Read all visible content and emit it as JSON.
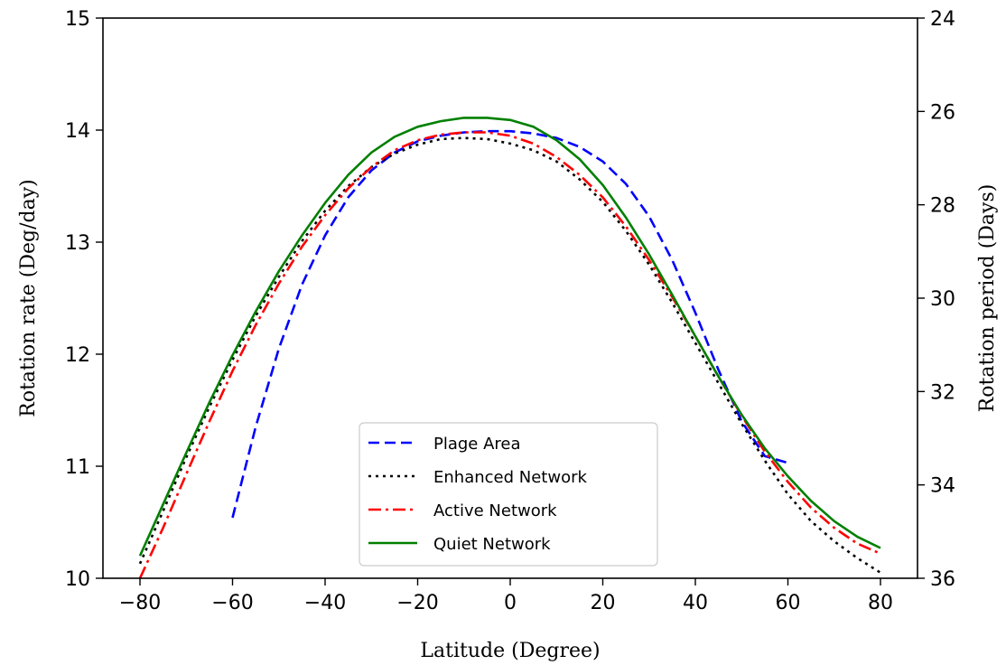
{
  "chart_data": {
    "type": "line",
    "title": "",
    "xlabel": "Latitude (Degree)",
    "ylabel": "Rotation rate (Deg/day)",
    "y2label": "Rotation period (Days)",
    "xlim": [
      -88,
      88
    ],
    "ylim": [
      10,
      15
    ],
    "y2lim": [
      36,
      24
    ],
    "xticks": [
      -80,
      -60,
      -40,
      -20,
      0,
      20,
      40,
      60,
      80
    ],
    "xtick_labels": [
      "−80",
      "−60",
      "−40",
      "−20",
      "0",
      "20",
      "40",
      "60",
      "80"
    ],
    "yticks": [
      10,
      11,
      12,
      13,
      14,
      15
    ],
    "ytick_labels": [
      "10",
      "11",
      "12",
      "13",
      "14",
      "15"
    ],
    "y2ticks": [
      24,
      26,
      28,
      30,
      32,
      34,
      36
    ],
    "y2tick_labels": [
      "24",
      "26",
      "28",
      "30",
      "32",
      "34",
      "36"
    ],
    "grid": false,
    "legend_position": "bottom-center",
    "series": [
      {
        "name": "Plage Area",
        "color": "#0000ff",
        "style": "dashed",
        "x": [
          -60,
          -55,
          -50,
          -45,
          -40,
          -35,
          -30,
          -25,
          -20,
          -15,
          -10,
          -5,
          0,
          5,
          10,
          15,
          20,
          25,
          30,
          35,
          40,
          45,
          50,
          55,
          60
        ],
        "y": [
          10.54,
          11.35,
          12.05,
          12.62,
          13.06,
          13.4,
          13.64,
          13.8,
          13.9,
          13.95,
          13.98,
          13.99,
          13.99,
          13.97,
          13.93,
          13.85,
          13.72,
          13.52,
          13.23,
          12.84,
          12.37,
          11.86,
          11.4,
          11.09,
          11.03
        ]
      },
      {
        "name": "Enhanced Network",
        "color": "#000000",
        "style": "dotted",
        "x": [
          -80,
          -75,
          -70,
          -65,
          -60,
          -55,
          -50,
          -45,
          -40,
          -35,
          -30,
          -25,
          -20,
          -15,
          -10,
          -5,
          0,
          5,
          10,
          15,
          20,
          25,
          30,
          35,
          40,
          45,
          50,
          55,
          60,
          65,
          70,
          75,
          80
        ],
        "y": [
          10.13,
          10.6,
          11.08,
          11.53,
          11.95,
          12.34,
          12.69,
          13.01,
          13.28,
          13.5,
          13.67,
          13.79,
          13.87,
          13.92,
          13.93,
          13.92,
          13.88,
          13.82,
          13.72,
          13.56,
          13.36,
          13.1,
          12.8,
          12.46,
          12.1,
          11.74,
          11.38,
          11.05,
          10.75,
          10.51,
          10.33,
          10.18,
          10.05
        ]
      },
      {
        "name": "Active Network",
        "color": "#ff0000",
        "style": "dashdot",
        "x": [
          -80,
          -75,
          -70,
          -65,
          -60,
          -55,
          -50,
          -45,
          -40,
          -35,
          -30,
          -25,
          -20,
          -15,
          -10,
          -5,
          0,
          5,
          10,
          15,
          20,
          25,
          30,
          35,
          40,
          45,
          50,
          55,
          60,
          65,
          70,
          75,
          80
        ],
        "y": [
          10.0,
          10.45,
          10.93,
          11.4,
          11.85,
          12.26,
          12.63,
          12.96,
          13.24,
          13.48,
          13.67,
          13.82,
          13.91,
          13.96,
          13.98,
          13.98,
          13.95,
          13.88,
          13.76,
          13.6,
          13.4,
          13.14,
          12.84,
          12.51,
          12.16,
          11.8,
          11.45,
          11.13,
          10.86,
          10.63,
          10.45,
          10.31,
          10.22
        ]
      },
      {
        "name": "Quiet Network",
        "color": "#008000",
        "style": "solid",
        "x": [
          -80,
          -75,
          -70,
          -65,
          -60,
          -55,
          -50,
          -45,
          -40,
          -35,
          -30,
          -25,
          -20,
          -15,
          -10,
          -5,
          0,
          5,
          10,
          15,
          20,
          25,
          30,
          35,
          40,
          45,
          50,
          55,
          60,
          65,
          70,
          75,
          80
        ],
        "y": [
          10.2,
          10.66,
          11.12,
          11.57,
          11.99,
          12.38,
          12.74,
          13.06,
          13.35,
          13.6,
          13.8,
          13.94,
          14.03,
          14.08,
          14.11,
          14.11,
          14.09,
          14.03,
          13.91,
          13.74,
          13.51,
          13.22,
          12.89,
          12.53,
          12.16,
          11.8,
          11.46,
          11.16,
          10.91,
          10.69,
          10.51,
          10.37,
          10.27
        ]
      }
    ]
  }
}
